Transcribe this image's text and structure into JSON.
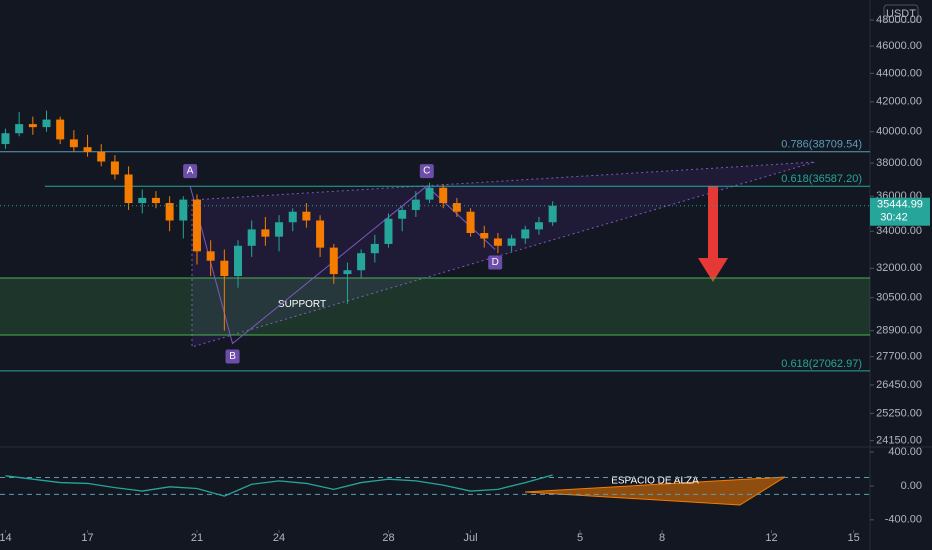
{
  "chart_data": [
    {
      "type": "candlestick",
      "currency": "USDT",
      "x": [
        14,
        14.5,
        15,
        15.5,
        16,
        16.5,
        17,
        17.5,
        18,
        18.5,
        19,
        19.5,
        20,
        20.5,
        21,
        21.5,
        22,
        22.5,
        23,
        23.5,
        24,
        24.5,
        25,
        25.5,
        26,
        26.5,
        27,
        27.5,
        28,
        28.5,
        29,
        29.5,
        30,
        30.5,
        31,
        31.5,
        32,
        32.5,
        33,
        33.5,
        34
      ],
      "open": [
        39200,
        39900,
        40500,
        40300,
        40800,
        39500,
        39000,
        38700,
        38100,
        37300,
        35600,
        35900,
        35600,
        34600,
        35800,
        32900,
        32400,
        31600,
        33200,
        34100,
        33700,
        34500,
        35100,
        34600,
        33100,
        31700,
        31900,
        32800,
        33300,
        34700,
        35200,
        35800,
        36500,
        35600,
        35100,
        33900,
        33600,
        33200,
        33600,
        34100,
        34500
      ],
      "high": [
        40200,
        41300,
        41000,
        41400,
        41000,
        40100,
        39800,
        39200,
        38500,
        37800,
        36400,
        36300,
        36000,
        36000,
        36100,
        33500,
        33000,
        33500,
        34600,
        34800,
        34900,
        35300,
        35600,
        34900,
        33300,
        32300,
        33000,
        33800,
        35000,
        35400,
        36300,
        36800,
        36700,
        35900,
        35300,
        34300,
        33900,
        33800,
        34300,
        34800,
        35700
      ],
      "low": [
        38900,
        39700,
        39800,
        40000,
        39200,
        38700,
        38400,
        37800,
        37000,
        35200,
        35000,
        35300,
        34000,
        33600,
        32200,
        31600,
        28900,
        31000,
        32600,
        33200,
        32900,
        34000,
        34200,
        32600,
        31200,
        30200,
        31500,
        32300,
        33100,
        34000,
        34800,
        35600,
        35300,
        34800,
        33700,
        33100,
        32800,
        32900,
        33300,
        33800,
        34300
      ],
      "close": [
        39900,
        40500,
        40300,
        40800,
        39500,
        39000,
        38700,
        38100,
        37300,
        35600,
        35900,
        35600,
        34600,
        35800,
        32900,
        32400,
        31600,
        33200,
        34100,
        33700,
        34500,
        35100,
        34600,
        33100,
        31700,
        31900,
        32800,
        33300,
        34700,
        35200,
        35800,
        36500,
        35600,
        35100,
        33900,
        33600,
        33200,
        33600,
        34100,
        34500,
        35445
      ],
      "up_color": "#26a69a",
      "down_color": "#f57c00",
      "log": true,
      "ylim": [
        23900,
        49600
      ],
      "yticks": [
        {
          "value": 48000,
          "label": "48000.00"
        },
        {
          "value": 46000,
          "label": "46000.00"
        },
        {
          "value": 44000,
          "label": "44000.00"
        },
        {
          "value": 42000,
          "label": "42000.00"
        },
        {
          "value": 40000,
          "label": "40000.00"
        },
        {
          "value": 38000,
          "label": "38000.00"
        },
        {
          "value": 36000,
          "label": "36000.00"
        },
        {
          "value": 34000,
          "label": "34000.00"
        },
        {
          "value": 32000,
          "label": "32000.00"
        },
        {
          "value": 30500,
          "label": "30500.00"
        },
        {
          "value": 28900,
          "label": "28900.00"
        },
        {
          "value": 27700,
          "label": "27700.00"
        },
        {
          "value": 26450,
          "label": "26450.00"
        },
        {
          "value": 25250,
          "label": "25250.00"
        },
        {
          "value": 24150,
          "label": "24150.00"
        }
      ],
      "xlim": [
        13.8,
        45.6
      ],
      "xticks": [
        14,
        17,
        21,
        24,
        28,
        {
          "value": 31,
          "label": "Jul"
        },
        {
          "value": 35,
          "label": "5"
        },
        {
          "value": 38,
          "label": "8"
        },
        {
          "value": 42,
          "label": "12"
        },
        {
          "value": 45,
          "label": "15"
        }
      ],
      "levels": [
        {
          "value": 38709.54,
          "label": "0.786(38709.54)",
          "color": "#5b9cb5"
        },
        {
          "value": 36587.2,
          "label": "0.618(36587.20)",
          "color": "#26a69a"
        },
        {
          "value": 27062.97,
          "label": "0.618(27062.97)",
          "color": "#26a69a"
        }
      ],
      "zones": [
        {
          "from": 28700,
          "to": 31500,
          "label": "SUPPORT"
        }
      ],
      "points": [
        {
          "label": "A",
          "x": 20.75,
          "y": 36600
        },
        {
          "label": "B",
          "x": 22.3,
          "y": 28300
        },
        {
          "label": "C",
          "x": 29.4,
          "y": 36600
        },
        {
          "label": "D",
          "x": 31.9,
          "y": 33000
        }
      ],
      "price_tag": 35444.99,
      "countdown": "30:42"
    },
    {
      "type": "line",
      "x": [
        14,
        15,
        16,
        17,
        18,
        19,
        20,
        21,
        22,
        23,
        24,
        25,
        26,
        27,
        28,
        29,
        30,
        31,
        32,
        33,
        34
      ],
      "values": [
        120,
        80,
        40,
        30,
        -20,
        -60,
        -10,
        -30,
        -120,
        20,
        60,
        30,
        -40,
        40,
        80,
        60,
        10,
        -60,
        -40,
        40,
        130
      ],
      "color": "#26a69a",
      "bands": [
        100,
        -100
      ],
      "ylim": [
        -520,
        460
      ],
      "yticks": [
        {
          "value": 400,
          "label": "400.00"
        },
        {
          "value": 0,
          "label": "0.00"
        },
        {
          "value": -400,
          "label": "-400.00"
        }
      ],
      "annotation": "ESPACIO DE ALZA"
    }
  ]
}
